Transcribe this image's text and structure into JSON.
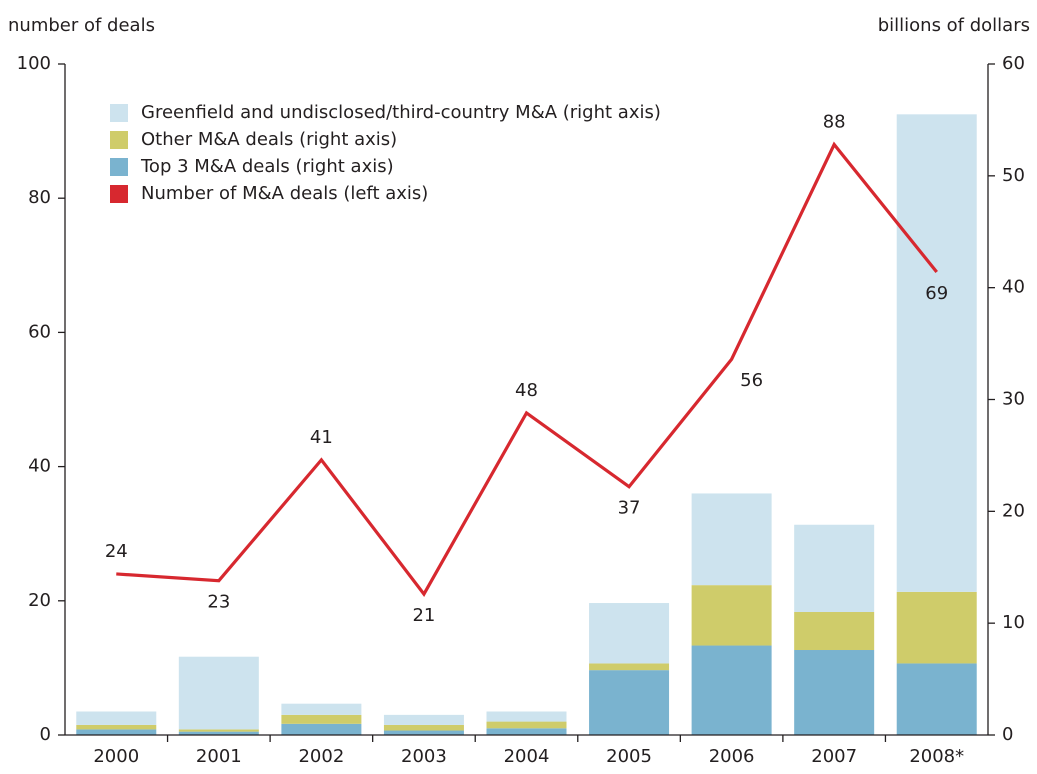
{
  "chart_data": {
    "type": "bar",
    "y_label": "number of deals",
    "y2_label": "billions of dollars",
    "categories": [
      "2000",
      "2001",
      "2002",
      "2003",
      "2004",
      "2005",
      "2006",
      "2007",
      "2008*"
    ],
    "series": [
      {
        "name": "Greenfield and undisclosed/third-country M&A (right axis)",
        "type": "bar",
        "axis": "y2",
        "color": "#cde3ee",
        "values": [
          1.2,
          6.5,
          1.0,
          0.9,
          0.9,
          5.4,
          8.2,
          7.8,
          42.7
        ]
      },
      {
        "name": "Other M&A deals (right axis)",
        "type": "bar",
        "axis": "y2",
        "color": "#cfcc6a",
        "values": [
          0.4,
          0.2,
          0.8,
          0.5,
          0.6,
          0.6,
          5.4,
          3.4,
          6.4
        ]
      },
      {
        "name": "Top 3 M&A deals (right axis)",
        "type": "bar",
        "axis": "y2",
        "color": "#7ab3cf",
        "values": [
          0.5,
          0.3,
          1.0,
          0.4,
          0.6,
          5.8,
          8.0,
          7.6,
          6.4
        ]
      },
      {
        "name": "Number of M&A deals (left axis)",
        "type": "line",
        "axis": "y",
        "color": "#d7282f",
        "values": [
          24,
          23,
          41,
          21,
          48,
          37,
          56,
          88,
          69
        ]
      }
    ],
    "ylim": [
      0,
      100
    ],
    "yticks": [
      0,
      20,
      40,
      60,
      80,
      100
    ],
    "y2lim": [
      0,
      60
    ],
    "y2ticks": [
      0,
      10,
      20,
      30,
      40,
      50,
      60
    ],
    "legend": "upper left"
  }
}
